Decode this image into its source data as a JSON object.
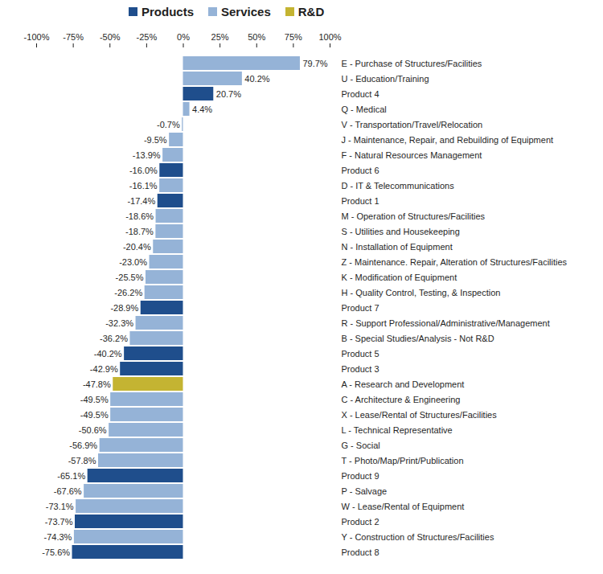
{
  "chart_data": {
    "type": "bar",
    "orientation": "horizontal",
    "legend": "top",
    "grid": false,
    "data_labels": true,
    "categories": [
      "E - Purchase of Structures/Facilities",
      "U - Education/Training",
      "Product 4",
      "Q - Medical",
      "V - Transportation/Travel/Relocation",
      "J - Maintenance, Repair, and Rebuilding of Equipment",
      "F - Natural Resources Management",
      "Product 6",
      "D - IT & Telecommunications",
      "Product 1",
      "M - Operation of Structures/Facilities",
      "S - Utilities and Housekeeping",
      "N - Installation of Equipment",
      "Z - Maintenance. Repair, Alteration of Structures/Facilities",
      "K - Modification of Equipment",
      "H - Quality Control, Testing, & Inspection",
      "Product 7",
      "R - Support Professional/Administrative/Management",
      "B - Special Studies/Analysis - Not R&D",
      "Product 5",
      "Product 3",
      "A - Research and Development",
      "C - Architecture & Engineering",
      "X - Lease/Rental of Structures/Facilities",
      "L - Technical Representative",
      "G - Social",
      "T - Photo/Map/Print/Publication",
      "Product 9",
      "P - Salvage",
      "W - Lease/Rental of Equipment",
      "Product 2",
      "Y - Construction of Structures/Facilities",
      "Product 8"
    ],
    "series": [
      {
        "name": "Products",
        "color": "#1f4e8c",
        "values": [
          null,
          null,
          20.7,
          null,
          null,
          null,
          null,
          -16.0,
          null,
          -17.4,
          null,
          null,
          null,
          null,
          null,
          null,
          -28.9,
          null,
          null,
          -40.2,
          -42.9,
          null,
          null,
          null,
          null,
          null,
          null,
          -65.1,
          null,
          null,
          -73.7,
          null,
          -75.6
        ],
        "value_labels": [
          null,
          null,
          "20.7%",
          null,
          null,
          null,
          null,
          "-16.0%",
          null,
          "-17.4%",
          null,
          null,
          null,
          null,
          null,
          null,
          "-28.9%",
          null,
          null,
          "-40.2%",
          "-42.9%",
          null,
          null,
          null,
          null,
          null,
          null,
          "-65.1%",
          null,
          null,
          "-73.7%",
          null,
          "-75.6%"
        ]
      },
      {
        "name": "Services",
        "color": "#95b3d7",
        "values": [
          79.7,
          40.2,
          null,
          4.4,
          -0.7,
          -9.5,
          -13.9,
          null,
          -16.1,
          null,
          -18.6,
          -18.7,
          -20.4,
          -23.0,
          -25.5,
          -26.2,
          null,
          -32.3,
          -36.2,
          null,
          null,
          null,
          -49.5,
          -49.5,
          -50.6,
          -56.9,
          -57.8,
          null,
          -67.6,
          -73.1,
          null,
          -74.3,
          null
        ],
        "value_labels": [
          "79.7%",
          "40.2%",
          null,
          "4.4%",
          "-0.7%",
          "-9.5%",
          "-13.9%",
          null,
          "-16.1%",
          null,
          "-18.6%",
          "-18.7%",
          "-20.4%",
          "-23.0%",
          "-25.5%",
          "-26.2%",
          null,
          "-32.3%",
          "-36.2%",
          null,
          null,
          null,
          "-49.5%",
          "-49.5%",
          "-50.6%",
          "-56.9%",
          "-57.8%",
          null,
          "-67.6%",
          "-73.1%",
          null,
          "-74.3%",
          null
        ]
      },
      {
        "name": "R&D",
        "color": "#c4b432",
        "values": [
          null,
          null,
          null,
          null,
          null,
          null,
          null,
          null,
          null,
          null,
          null,
          null,
          null,
          null,
          null,
          null,
          null,
          null,
          null,
          null,
          null,
          -47.8,
          null,
          null,
          null,
          null,
          null,
          null,
          null,
          null,
          null,
          null,
          null
        ],
        "value_labels": [
          null,
          null,
          null,
          null,
          null,
          null,
          null,
          null,
          null,
          null,
          null,
          null,
          null,
          null,
          null,
          null,
          null,
          null,
          null,
          null,
          null,
          "-47.8%",
          null,
          null,
          null,
          null,
          null,
          null,
          null,
          null,
          null,
          null,
          null
        ]
      }
    ],
    "xlim": [
      -100,
      100
    ],
    "xticks": [
      {
        "value": -100,
        "label": "-100%"
      },
      {
        "value": -75,
        "label": "-75%"
      },
      {
        "value": -50,
        "label": "-50%"
      },
      {
        "value": -25,
        "label": "-25%"
      },
      {
        "value": 0,
        "label": "0%"
      },
      {
        "value": 25,
        "label": "25%"
      },
      {
        "value": 50,
        "label": "50%"
      },
      {
        "value": 75,
        "label": "75%"
      },
      {
        "value": 100,
        "label": "100%"
      }
    ]
  }
}
